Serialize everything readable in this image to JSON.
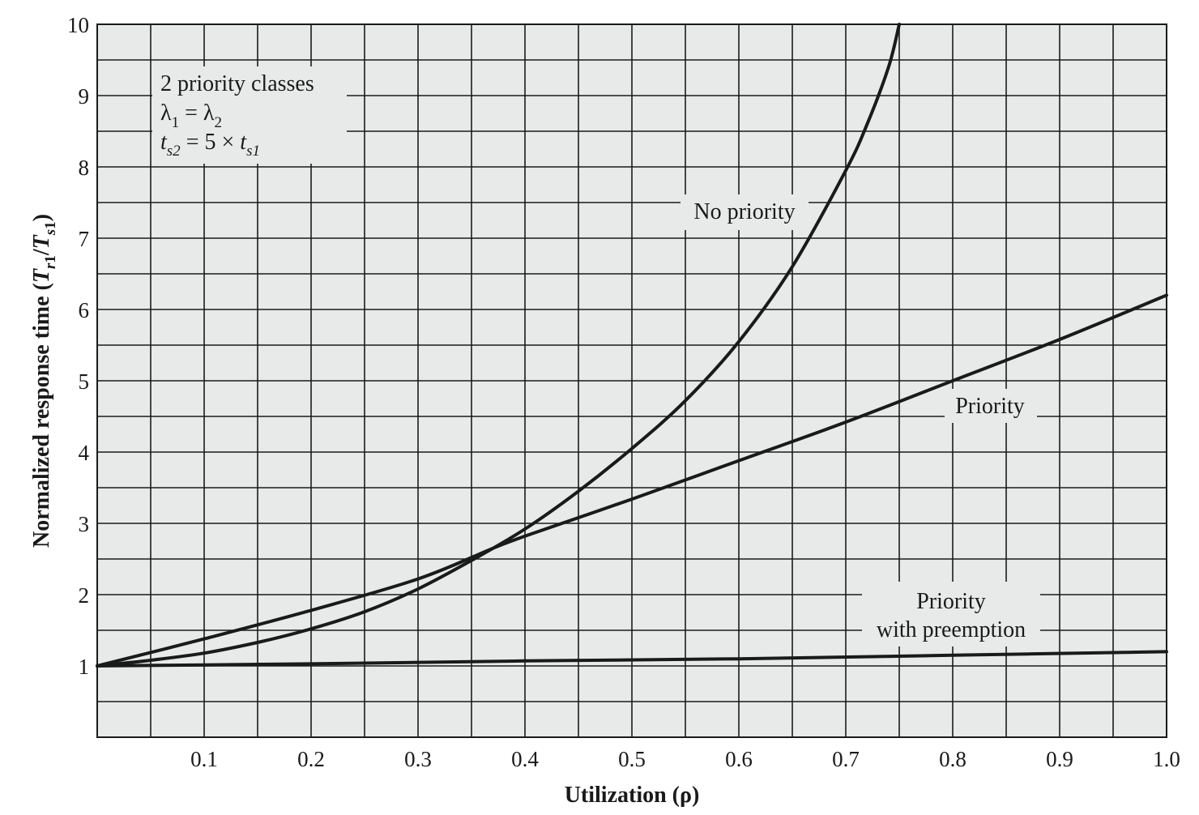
{
  "chart_data": {
    "type": "line",
    "xlabel": "Utilization (ρ)",
    "ylabel_parts": [
      "Normalized response time (",
      "T",
      "r",
      "1",
      "/",
      "T",
      "s",
      "1",
      ")"
    ],
    "xlim": [
      0,
      1.0
    ],
    "ylim": [
      0,
      10
    ],
    "x_ticks": [
      "0.1",
      "0.2",
      "0.3",
      "0.4",
      "0.5",
      "0.6",
      "0.7",
      "0.8",
      "0.9",
      "1.0"
    ],
    "y_ticks": [
      "1",
      "2",
      "3",
      "4",
      "5",
      "6",
      "7",
      "8",
      "9",
      "10"
    ],
    "grid": true,
    "legend_box": {
      "line1": "2 priority classes",
      "line2_parts": [
        "λ",
        "1",
        " = λ",
        "2"
      ],
      "line3_parts": [
        "t",
        "s2",
        " = 5 × ",
        "t",
        "s1"
      ]
    },
    "series": [
      {
        "name": "No priority",
        "x": [
          0,
          0.05,
          0.1,
          0.15,
          0.2,
          0.25,
          0.3,
          0.35,
          0.4,
          0.45,
          0.5,
          0.55,
          0.6,
          0.65,
          0.7,
          0.72,
          0.74,
          0.75
        ],
        "y": [
          1.0,
          1.08,
          1.18,
          1.33,
          1.52,
          1.76,
          2.08,
          2.48,
          2.92,
          3.45,
          4.05,
          4.72,
          5.55,
          6.6,
          7.95,
          8.6,
          9.4,
          10.0
        ]
      },
      {
        "name": "Priority",
        "x": [
          0,
          0.1,
          0.2,
          0.3,
          0.37,
          0.4,
          0.5,
          0.6,
          0.7,
          0.8,
          0.9,
          1.0
        ],
        "y": [
          1.0,
          1.38,
          1.78,
          2.22,
          2.65,
          2.82,
          3.34,
          3.88,
          4.42,
          5.0,
          5.58,
          6.2
        ]
      },
      {
        "name_lines": [
          "Priority",
          "with preemption"
        ],
        "x": [
          0,
          0.2,
          0.4,
          0.6,
          0.8,
          1.0
        ],
        "y": [
          1.0,
          1.03,
          1.07,
          1.1,
          1.15,
          1.2
        ]
      }
    ]
  }
}
